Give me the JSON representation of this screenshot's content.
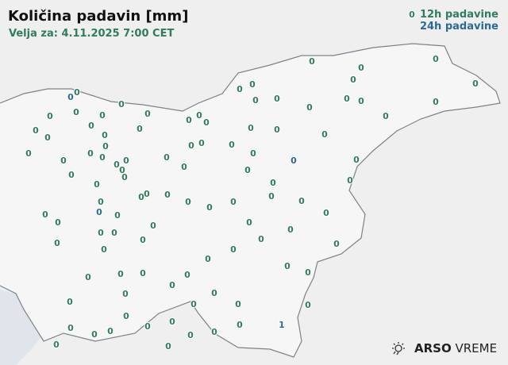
{
  "header": {
    "title": "Količina padavin [mm]",
    "valid_for": "Velja za: 4.11.2025 7:00 CET"
  },
  "legend": {
    "items": [
      {
        "label": "12h padavine",
        "color": "#2e7d5b"
      },
      {
        "label": "24h padavine",
        "color": "#2a6a96"
      }
    ]
  },
  "logo": {
    "brand": "ARSO",
    "product": "VREME"
  },
  "colors": {
    "precip_12h": "#2e7d5b",
    "precip_24h": "#2a6a96",
    "border": "#7a838c",
    "sea": "#dfe5ea"
  },
  "stations_12h": [
    0,
    0,
    0,
    0,
    0,
    0,
    0,
    0,
    0,
    0,
    0,
    0,
    0,
    0,
    0,
    0,
    0,
    0,
    0,
    0,
    0,
    0,
    0,
    0,
    0,
    0,
    0,
    0,
    0,
    0,
    0,
    0,
    0,
    0,
    0,
    0,
    0,
    0,
    0,
    0,
    0,
    0,
    0,
    0,
    0,
    0,
    0,
    0,
    0,
    0,
    0,
    0,
    0,
    0,
    0,
    0,
    0,
    0,
    0,
    0,
    0,
    0,
    0,
    0,
    0,
    0,
    0,
    0,
    0,
    0,
    0,
    0,
    0,
    0,
    0,
    0,
    0,
    0,
    0,
    0,
    0,
    0,
    0,
    0,
    0,
    0,
    0,
    0,
    0,
    0,
    0,
    0,
    0,
    0,
    0,
    0,
    0,
    0,
    0,
    0,
    0,
    0,
    0
  ],
  "stations_24h": [
    0,
    0,
    0,
    1
  ]
}
